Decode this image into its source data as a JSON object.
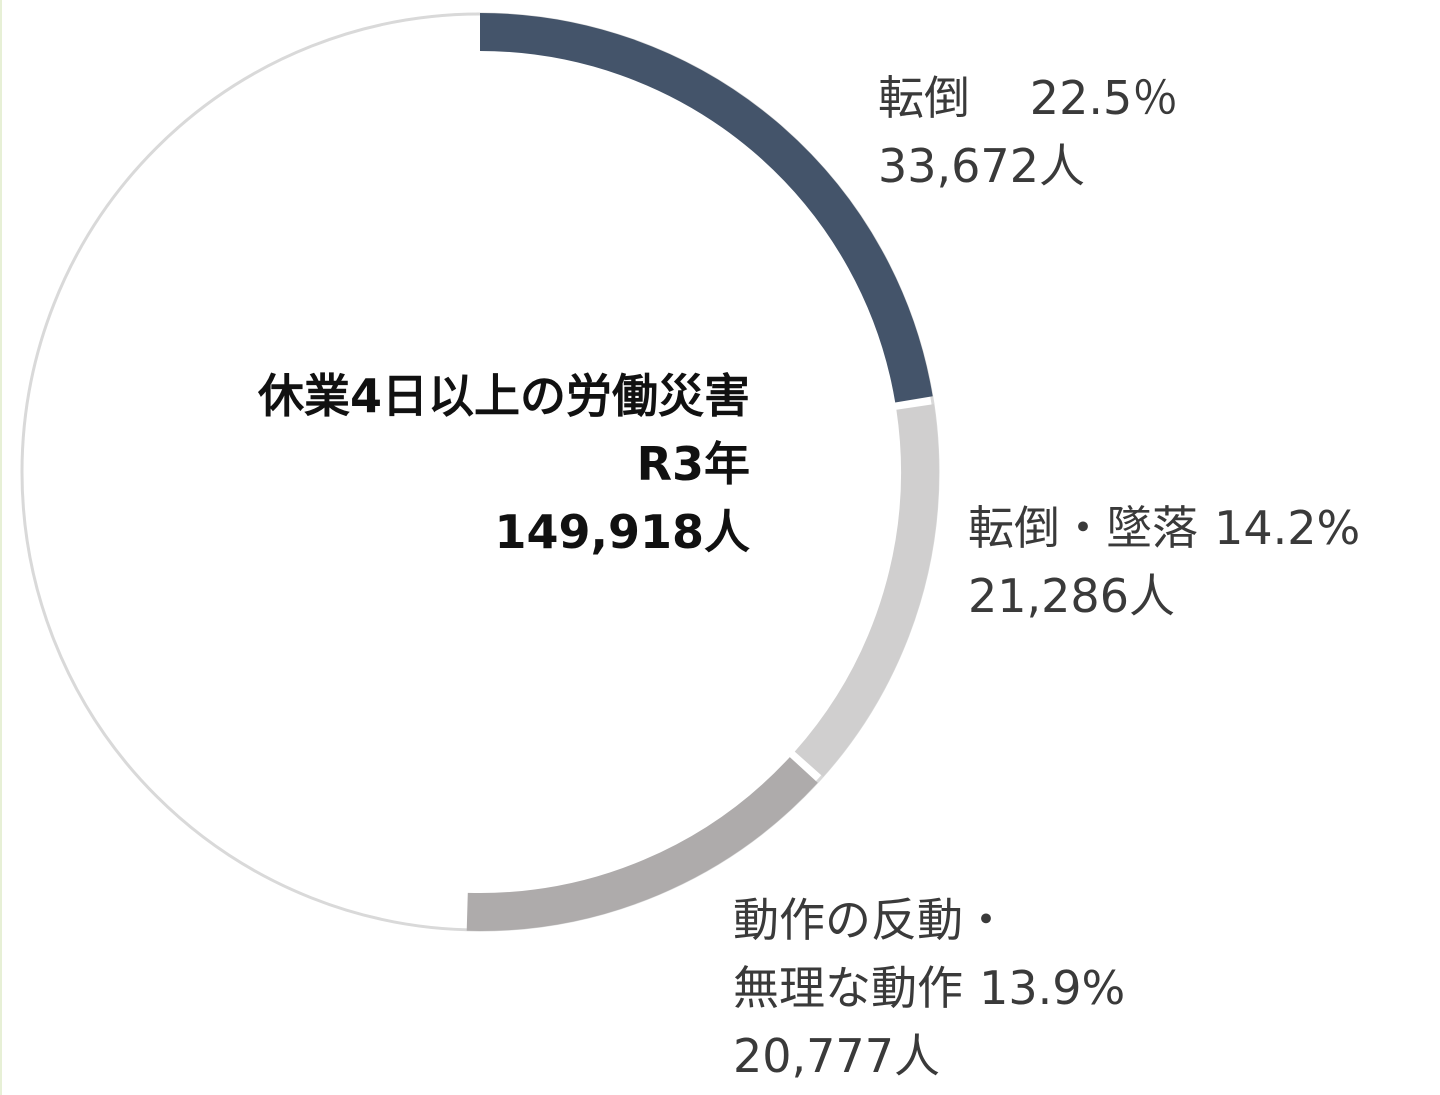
{
  "center": {
    "line1": "休業4日以上の労働災害",
    "line2": "R3年",
    "line3": "149,918人"
  },
  "colors": {
    "ring_base": "#d9d9d9",
    "fall": "#44546a",
    "fall_drop": "#d0cfcf",
    "motion": "#aeabab",
    "gap": "#ffffff"
  },
  "chart_data": {
    "type": "pie",
    "variant": "donut",
    "total": 149918,
    "segments": [
      {
        "name": "転倒",
        "percent": 22.5,
        "count": 33672,
        "name_text": "転倒",
        "pct_text": "22.5％",
        "count_text": "33,672人"
      },
      {
        "name": "転倒・墜落",
        "percent": 14.2,
        "count": 21286,
        "name_text": "転倒・墜落",
        "pct_text": "14.2%",
        "count_text": "21,286人"
      },
      {
        "name": "動作の反動・無理な動作",
        "percent": 13.9,
        "count": 20777,
        "name_text_1": "動作の反動・",
        "name_text_2": "無理な動作",
        "pct_text": "13.9%",
        "count_text": "20,777人"
      }
    ],
    "start_angle": "12 o'clock",
    "direction": "clockwise",
    "legend": "none"
  }
}
